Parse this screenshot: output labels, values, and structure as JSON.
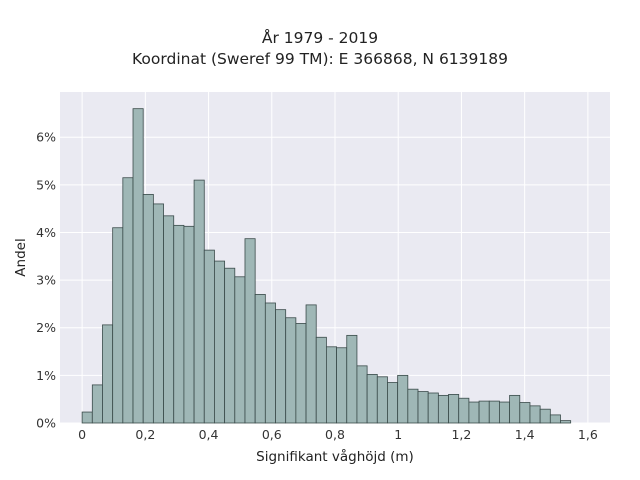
{
  "chart_data": {
    "type": "bar",
    "title": "År 1979 - 2019",
    "subtitle": "Koordinat (Sweref 99 TM): E 366868, N 6139189",
    "xlabel": "Signifikant våghöjd (m)",
    "ylabel": "Andel",
    "xlim": [
      -0.07,
      1.67
    ],
    "ylim": [
      0,
      6.95
    ],
    "grid": true,
    "x_ticks": [
      {
        "value": 0,
        "label": "0"
      },
      {
        "value": 0.2,
        "label": "0,2"
      },
      {
        "value": 0.4,
        "label": "0,4"
      },
      {
        "value": 0.6,
        "label": "0,6"
      },
      {
        "value": 0.8,
        "label": "0,8"
      },
      {
        "value": 1.0,
        "label": "1"
      },
      {
        "value": 1.2,
        "label": "1,2"
      },
      {
        "value": 1.4,
        "label": "1,4"
      },
      {
        "value": 1.6,
        "label": "1,6"
      }
    ],
    "y_ticks": [
      {
        "value": 0,
        "label": "0%"
      },
      {
        "value": 1,
        "label": "1%"
      },
      {
        "value": 2,
        "label": "2%"
      },
      {
        "value": 3,
        "label": "3%"
      },
      {
        "value": 4,
        "label": "4%"
      },
      {
        "value": 5,
        "label": "5%"
      },
      {
        "value": 6,
        "label": "6%"
      }
    ],
    "bin_width": 0.0322,
    "bin_starts": [
      0.0,
      0.0322,
      0.0644,
      0.0966,
      0.1288,
      0.161,
      0.1932,
      0.2254,
      0.2576,
      0.2898,
      0.322,
      0.3542,
      0.3864,
      0.4186,
      0.4508,
      0.483,
      0.5152,
      0.5474,
      0.5796,
      0.6118,
      0.644,
      0.6762,
      0.7084,
      0.7406,
      0.7728,
      0.805,
      0.8372,
      0.8694,
      0.9016,
      0.9338,
      0.966,
      0.9982,
      1.0304,
      1.0626,
      1.0948,
      1.127,
      1.1592,
      1.1914,
      1.2236,
      1.2558,
      1.288,
      1.3202,
      1.3524,
      1.3846,
      1.4168,
      1.449,
      1.4812,
      1.5134,
      1.5456
    ],
    "values": [
      0.23,
      0.8,
      2.06,
      4.1,
      5.15,
      6.6,
      4.8,
      4.6,
      4.35,
      4.15,
      4.13,
      5.1,
      3.63,
      3.4,
      3.25,
      3.07,
      3.87,
      2.7,
      2.52,
      2.38,
      2.21,
      2.09,
      2.48,
      1.8,
      1.6,
      1.58,
      1.84,
      1.2,
      1.02,
      0.97,
      0.85,
      1.0,
      0.71,
      0.66,
      0.63,
      0.58,
      0.6,
      0.52,
      0.44,
      0.46,
      0.46,
      0.44,
      0.58,
      0.43,
      0.36,
      0.29,
      0.17,
      0.05
    ],
    "colors": {
      "bar_fill": "#9fb7b6",
      "bar_edge": "#3a4b4a",
      "plot_background": "#eaeaf2",
      "grid": "#ffffff"
    }
  }
}
